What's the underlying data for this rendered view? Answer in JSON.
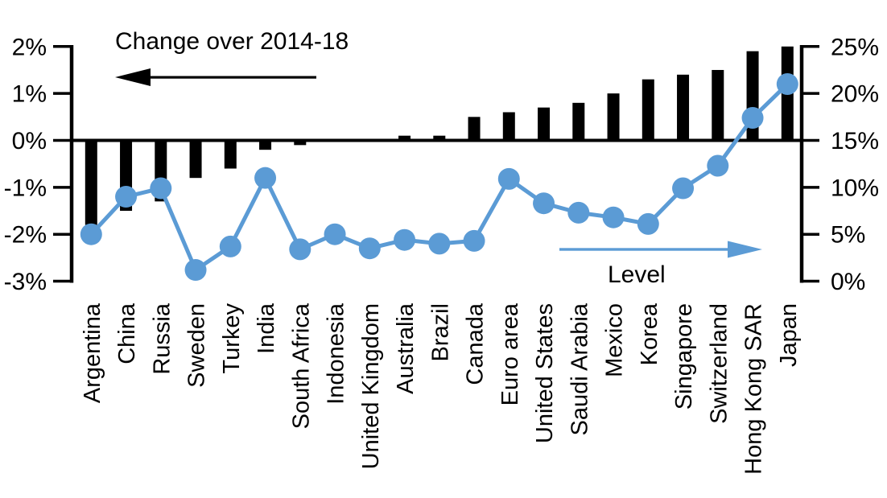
{
  "chart_data": {
    "type": "bar",
    "combo": "bar+line",
    "categories": [
      "Argentina",
      "China",
      "Russia",
      "Sweden",
      "Turkey",
      "India",
      "South Africa",
      "Indonesia",
      "United Kingdom",
      "Australia",
      "Brazil",
      "Canada",
      "Euro area",
      "United States",
      "Saudi Arabia",
      "Mexico",
      "Korea",
      "Singapore",
      "Switzerland",
      "Hong Kong SAR",
      "Japan"
    ],
    "series": [
      {
        "name": "Change over 2014-18",
        "type": "bar",
        "axis": "left",
        "unit": "%",
        "color": "#000000",
        "values": [
          -1.8,
          -1.5,
          -1.3,
          -0.8,
          -0.6,
          -0.2,
          -0.1,
          0,
          0,
          0.1,
          0.1,
          0.5,
          0.6,
          0.7,
          0.8,
          1.0,
          1.3,
          1.4,
          1.5,
          1.9,
          2.0
        ]
      },
      {
        "name": "Level",
        "type": "line",
        "axis": "right",
        "unit": "%",
        "color": "#5B9BD5",
        "values": [
          5.0,
          9.0,
          9.9,
          1.2,
          3.7,
          11.0,
          3.4,
          5.0,
          3.5,
          4.4,
          4.0,
          4.3,
          10.9,
          8.3,
          7.3,
          6.8,
          6.1,
          9.9,
          12.3,
          17.4,
          21.0
        ]
      }
    ],
    "left_axis": {
      "tick_labels": [
        "2%",
        "1%",
        "0%",
        "-1%",
        "-2%",
        "-3%"
      ],
      "max": 2,
      "min": -3,
      "step": 1
    },
    "right_axis": {
      "tick_labels": [
        "25%",
        "20%",
        "15%",
        "10%",
        "5%",
        "0%"
      ],
      "max": 25,
      "min": 0,
      "step": 5
    },
    "grid": false,
    "legend_position": "in-plot arrow annotations",
    "annotations": {
      "bar_arrow_direction": "left",
      "line_arrow_direction": "right"
    }
  },
  "colors": {
    "bar": "#000000",
    "line": "#5B9BD5",
    "axis": "#000000",
    "text": "#000000",
    "background": "#FFFFFF"
  }
}
